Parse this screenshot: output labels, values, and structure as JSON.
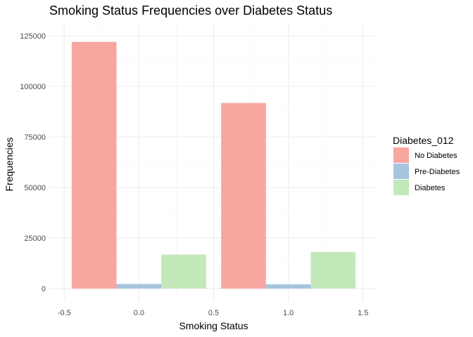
{
  "chart_data": {
    "type": "bar",
    "title": "Smoking Status Frequencies over Diabetes Status",
    "xlabel": "Smoking Status",
    "ylabel": "Frequencies",
    "xlim": [
      -0.5,
      1.5
    ],
    "ylim": [
      0,
      125000
    ],
    "x_ticks": [
      -0.5,
      0.0,
      0.5,
      1.0,
      1.5
    ],
    "x_tick_labels": [
      "-0.5",
      "0.0",
      "0.5",
      "1.0",
      "1.5"
    ],
    "y_ticks": [
      0,
      25000,
      50000,
      75000,
      100000,
      125000
    ],
    "y_tick_labels": [
      "0",
      "25000",
      "50000",
      "75000",
      "100000",
      "125000"
    ],
    "grid": true,
    "dodge_width": 0.9,
    "categories": [
      0,
      1
    ],
    "legend": {
      "title": "Diabetes_012",
      "position": "right"
    },
    "series": [
      {
        "name": "No Diabetes",
        "color": "#F8A6A0",
        "values": [
          122000,
          91800
        ]
      },
      {
        "name": "Pre-Diabetes",
        "color": "#A7C4DF",
        "values": [
          2300,
          2100
        ]
      },
      {
        "name": "Diabetes",
        "color": "#C3E8BA",
        "values": [
          16800,
          18100
        ]
      }
    ]
  }
}
